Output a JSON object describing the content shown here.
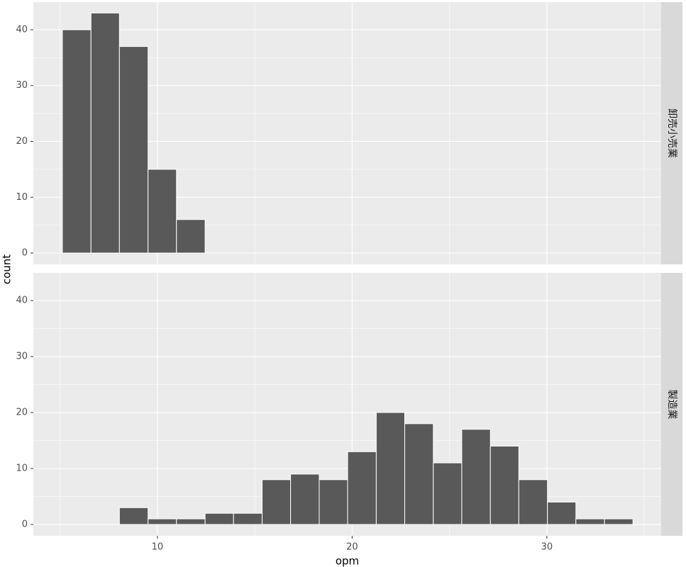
{
  "chart_data": [
    {
      "type": "histogram",
      "facet": "卸売小売業",
      "ylabel": "count",
      "bins": [
        5.12,
        6.59,
        8.05,
        9.52,
        10.98,
        12.45
      ],
      "values": [
        40,
        43,
        37,
        15,
        6
      ],
      "color": "#595959",
      "xlim": [
        3.63,
        35.87
      ],
      "ylim": [
        -2.03,
        44.95
      ],
      "yticks": [
        0,
        10,
        20,
        30,
        40
      ],
      "xminor": [
        5,
        15,
        25,
        35
      ],
      "yminor": [
        5,
        15,
        25,
        35
      ],
      "xgrid": [
        10,
        20,
        30
      ],
      "grid": true
    },
    {
      "type": "histogram",
      "facet": "製造業",
      "xlabel": "opm",
      "bins": [
        8.05,
        9.52,
        10.98,
        12.45,
        13.91,
        15.38,
        16.84,
        18.31,
        19.77,
        21.24,
        22.7,
        24.17,
        25.63,
        27.1,
        28.56,
        30.03,
        31.49,
        32.96,
        34.42
      ],
      "values": [
        3,
        1,
        1,
        2,
        2,
        8,
        9,
        8,
        13,
        20,
        18,
        11,
        17,
        14,
        8,
        4,
        1,
        1
      ],
      "color": "#595959",
      "xlim": [
        3.63,
        35.87
      ],
      "ylim": [
        -2.03,
        44.95
      ],
      "xticks": [
        10,
        20,
        30
      ],
      "yticks": [
        0,
        10,
        20,
        30,
        40
      ],
      "xminor": [
        5,
        15,
        25,
        35
      ],
      "yminor": [
        5,
        15,
        25,
        35
      ],
      "grid": true
    }
  ]
}
